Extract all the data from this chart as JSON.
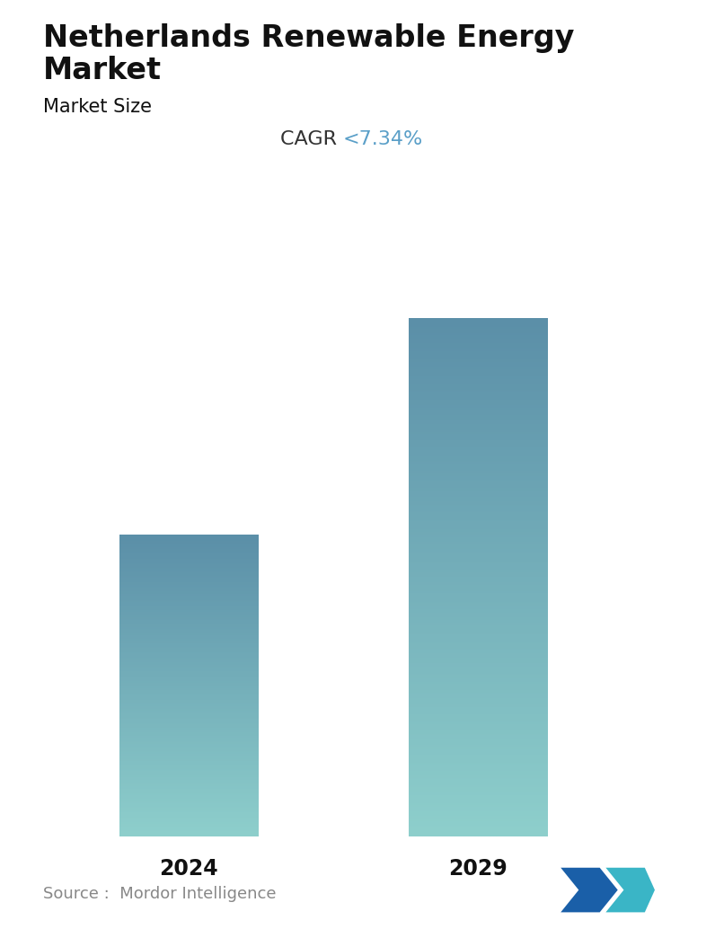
{
  "title_line1": "Netherlands Renewable Energy",
  "title_line2": "Market",
  "subtitle": "Market Size",
  "cagr_label": "CAGR ",
  "cagr_value": "<7.34%",
  "categories": [
    "2024",
    "2029"
  ],
  "bar_top_color": "#5b8fa8",
  "bar_bottom_color": "#8ecfcc",
  "background_color": "#ffffff",
  "title_fontsize": 24,
  "subtitle_fontsize": 15,
  "cagr_fontsize": 16,
  "tick_fontsize": 17,
  "source_text": "Source :  Mordor Intelligence",
  "source_fontsize": 13,
  "title_color": "#111111",
  "subtitle_color": "#111111",
  "cagr_text_color": "#333333",
  "cagr_value_color": "#5a9fc8",
  "tick_color": "#111111",
  "source_color": "#888888",
  "logo_left_color": "#1a5fa8",
  "logo_right_color": "#3ab5c6"
}
